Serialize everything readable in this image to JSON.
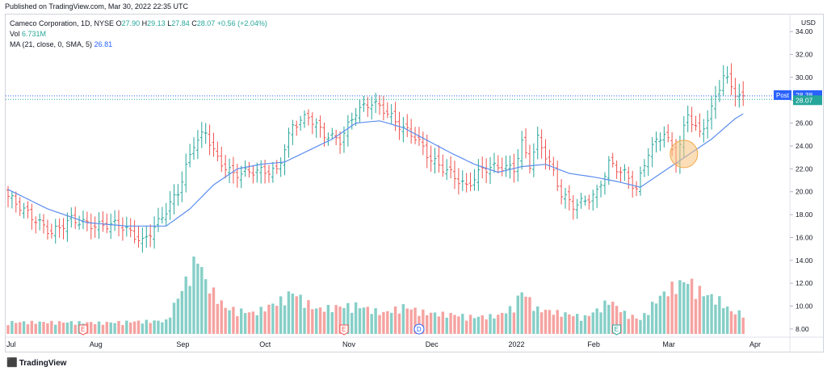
{
  "header": {
    "published": "Published on TradingView.com, Mar 30, 2022 22:35 UTC"
  },
  "legend": {
    "title": "Cameco Corporation, 1D, NYSE",
    "o_label": "O",
    "o_value": "27.90",
    "h_label": "H",
    "h_value": "29.13",
    "l_label": "L",
    "l_value": "27.84",
    "c_label": "C",
    "c_value": "28.07",
    "change": "+0.56 (+2.04%)",
    "vol_label": "Vol",
    "vol_value": "6.731M",
    "ma_label": "MA (21, close, 0, SMA, 5)",
    "ma_value": "26.81"
  },
  "footer": {
    "brand": "TradingView"
  },
  "colors": {
    "up": "#26a69a",
    "down": "#ef5350",
    "up_vol": "#86cfc7",
    "down_vol": "#f5a3a1",
    "ma": "#5b8def",
    "price_tag": "#2962ff",
    "last_tag": "#26a69a",
    "highlight": "#f7c27e"
  },
  "chart_data": {
    "type": "bar",
    "currency": "USD",
    "y_ticks": [
      "8.00",
      "10.00",
      "12.00",
      "14.00",
      "16.00",
      "18.00",
      "20.00",
      "22.00",
      "24.00",
      "26.00",
      "28.00",
      "30.00",
      "32.00",
      "34.00"
    ],
    "ylim": [
      7.5,
      35
    ],
    "x_ticks": [
      {
        "label": "Jul",
        "day": 0
      },
      {
        "label": "Aug",
        "day": 21
      },
      {
        "label": "Sep",
        "day": 43
      },
      {
        "label": "Oct",
        "day": 64
      },
      {
        "label": "Nov",
        "day": 85
      },
      {
        "label": "Dec",
        "day": 106
      },
      {
        "label": "2022",
        "day": 127
      },
      {
        "label": "Feb",
        "day": 147
      },
      {
        "label": "Mar",
        "day": 166
      },
      {
        "label": "Apr",
        "day": 188
      }
    ],
    "post_label": "Post",
    "post_price": 28.38,
    "last_price": 28.07,
    "events": [
      {
        "type": "E",
        "day": 19
      },
      {
        "type": "E",
        "day": 85
      },
      {
        "type": "D",
        "day": 104
      },
      {
        "type": "E",
        "day": 154
      }
    ],
    "close_anchors": [
      [
        0,
        19.6
      ],
      [
        6,
        17.8
      ],
      [
        11,
        16.4
      ],
      [
        16,
        17.6
      ],
      [
        22,
        17.0
      ],
      [
        28,
        17.2
      ],
      [
        34,
        15.6
      ],
      [
        38,
        17.3
      ],
      [
        43,
        20.0
      ],
      [
        47,
        24.2
      ],
      [
        50,
        25.2
      ],
      [
        53,
        22.8
      ],
      [
        57,
        21.5
      ],
      [
        62,
        21.8
      ],
      [
        68,
        21.8
      ],
      [
        72,
        25.8
      ],
      [
        76,
        26.6
      ],
      [
        80,
        25.0
      ],
      [
        84,
        24.5
      ],
      [
        88,
        27.0
      ],
      [
        92,
        27.8
      ],
      [
        95,
        27.2
      ],
      [
        99,
        25.8
      ],
      [
        103,
        24.8
      ],
      [
        107,
        22.8
      ],
      [
        112,
        21.6
      ],
      [
        116,
        20.4
      ],
      [
        120,
        22.0
      ],
      [
        124,
        22.2
      ],
      [
        128,
        22.0
      ],
      [
        130,
        24.2
      ],
      [
        132,
        22.4
      ],
      [
        134,
        24.6
      ],
      [
        137,
        22.5
      ],
      [
        140,
        19.8
      ],
      [
        143,
        18.8
      ],
      [
        146,
        19.2
      ],
      [
        149,
        19.9
      ],
      [
        152,
        22.5
      ],
      [
        156,
        21.6
      ],
      [
        159,
        20.2
      ],
      [
        162,
        23.5
      ],
      [
        166,
        25.2
      ],
      [
        169,
        22.8
      ],
      [
        172,
        26.8
      ],
      [
        175,
        25.0
      ],
      [
        178,
        27.2
      ],
      [
        181,
        30.2
      ],
      [
        184,
        28.7
      ],
      [
        186,
        28.07
      ]
    ],
    "ma_anchors": [
      [
        0,
        20.2
      ],
      [
        10,
        18.5
      ],
      [
        20,
        17.3
      ],
      [
        30,
        17.0
      ],
      [
        40,
        17.0
      ],
      [
        46,
        18.5
      ],
      [
        52,
        20.6
      ],
      [
        58,
        22.0
      ],
      [
        64,
        22.4
      ],
      [
        70,
        22.6
      ],
      [
        76,
        23.6
      ],
      [
        82,
        24.6
      ],
      [
        88,
        26.0
      ],
      [
        94,
        26.2
      ],
      [
        100,
        25.6
      ],
      [
        106,
        24.5
      ],
      [
        112,
        23.4
      ],
      [
        118,
        22.4
      ],
      [
        124,
        21.7
      ],
      [
        130,
        22.2
      ],
      [
        136,
        22.4
      ],
      [
        142,
        21.6
      ],
      [
        148,
        21.3
      ],
      [
        154,
        20.9
      ],
      [
        160,
        20.4
      ],
      [
        166,
        21.8
      ],
      [
        172,
        23.2
      ],
      [
        178,
        24.6
      ],
      [
        184,
        26.4
      ],
      [
        186,
        26.81
      ]
    ],
    "volume_anchors": [
      [
        0,
        0.9
      ],
      [
        8,
        0.9
      ],
      [
        16,
        0.9
      ],
      [
        24,
        0.85
      ],
      [
        32,
        0.95
      ],
      [
        40,
        1.0
      ],
      [
        44,
        3.4
      ],
      [
        48,
        6.0
      ],
      [
        50,
        4.0
      ],
      [
        55,
        2.0
      ],
      [
        62,
        1.6
      ],
      [
        68,
        2.4
      ],
      [
        72,
        3.2
      ],
      [
        78,
        1.9
      ],
      [
        84,
        2.1
      ],
      [
        88,
        2.2
      ],
      [
        95,
        1.6
      ],
      [
        100,
        2.1
      ],
      [
        106,
        1.6
      ],
      [
        112,
        1.5
      ],
      [
        118,
        1.3
      ],
      [
        124,
        1.4
      ],
      [
        128,
        2.1
      ],
      [
        130,
        3.3
      ],
      [
        134,
        1.9
      ],
      [
        140,
        1.6
      ],
      [
        146,
        1.3
      ],
      [
        150,
        2.0
      ],
      [
        152,
        2.6
      ],
      [
        156,
        1.6
      ],
      [
        160,
        1.1
      ],
      [
        164,
        2.6
      ],
      [
        168,
        3.6
      ],
      [
        172,
        4.1
      ],
      [
        176,
        3.1
      ],
      [
        180,
        2.6
      ],
      [
        183,
        1.7
      ],
      [
        186,
        1.6
      ]
    ]
  }
}
